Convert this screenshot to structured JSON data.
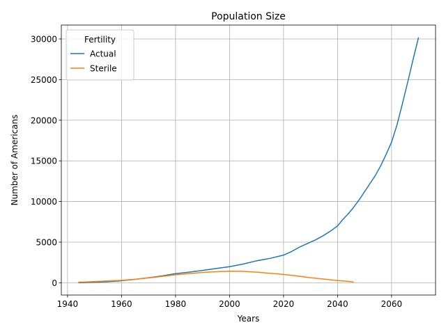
{
  "chart_data": {
    "type": "line",
    "title": "Population Size",
    "xlabel": "Years",
    "ylabel": "Number of Americans",
    "xlim": [
      1937.7,
      2076.3
    ],
    "ylim": [
      -1510,
      31710
    ],
    "x_ticks": [
      1940,
      1960,
      1980,
      2000,
      2020,
      2040,
      2060
    ],
    "y_ticks": [
      0,
      5000,
      10000,
      15000,
      20000,
      25000,
      30000
    ],
    "grid": true,
    "legend": {
      "title": "Fertility",
      "placement": "top-left"
    },
    "series": [
      {
        "name": "Actual",
        "color": "#1f77b4",
        "x": [
          1944,
          1950,
          1955,
          1960,
          1965,
          1970,
          1975,
          1980,
          1985,
          1990,
          1995,
          2000,
          2005,
          2010,
          2015,
          2020,
          2023,
          2026,
          2029,
          2032,
          2035,
          2038,
          2040,
          2042,
          2044,
          2046,
          2048,
          2050,
          2052,
          2054,
          2056,
          2058,
          2060,
          2062,
          2064,
          2066,
          2068,
          2070
        ],
        "y": [
          0,
          60,
          130,
          250,
          420,
          620,
          850,
          1120,
          1300,
          1520,
          1750,
          1980,
          2300,
          2700,
          3000,
          3400,
          3850,
          4400,
          4850,
          5300,
          5850,
          6500,
          7000,
          7800,
          8500,
          9300,
          10200,
          11200,
          12200,
          13200,
          14400,
          15800,
          17300,
          19400,
          22000,
          24700,
          27500,
          30200
        ]
      },
      {
        "name": "Sterile",
        "color": "#ff7f0e",
        "x": [
          1944,
          1950,
          1955,
          1960,
          1965,
          1970,
          1975,
          1980,
          1985,
          1990,
          1995,
          2000,
          2005,
          2010,
          2015,
          2020,
          2025,
          2030,
          2035,
          2040,
          2044,
          2046
        ],
        "y": [
          60,
          150,
          220,
          300,
          430,
          600,
          780,
          980,
          1120,
          1270,
          1360,
          1420,
          1400,
          1300,
          1170,
          1030,
          830,
          620,
          450,
          280,
          170,
          100
        ]
      }
    ]
  }
}
